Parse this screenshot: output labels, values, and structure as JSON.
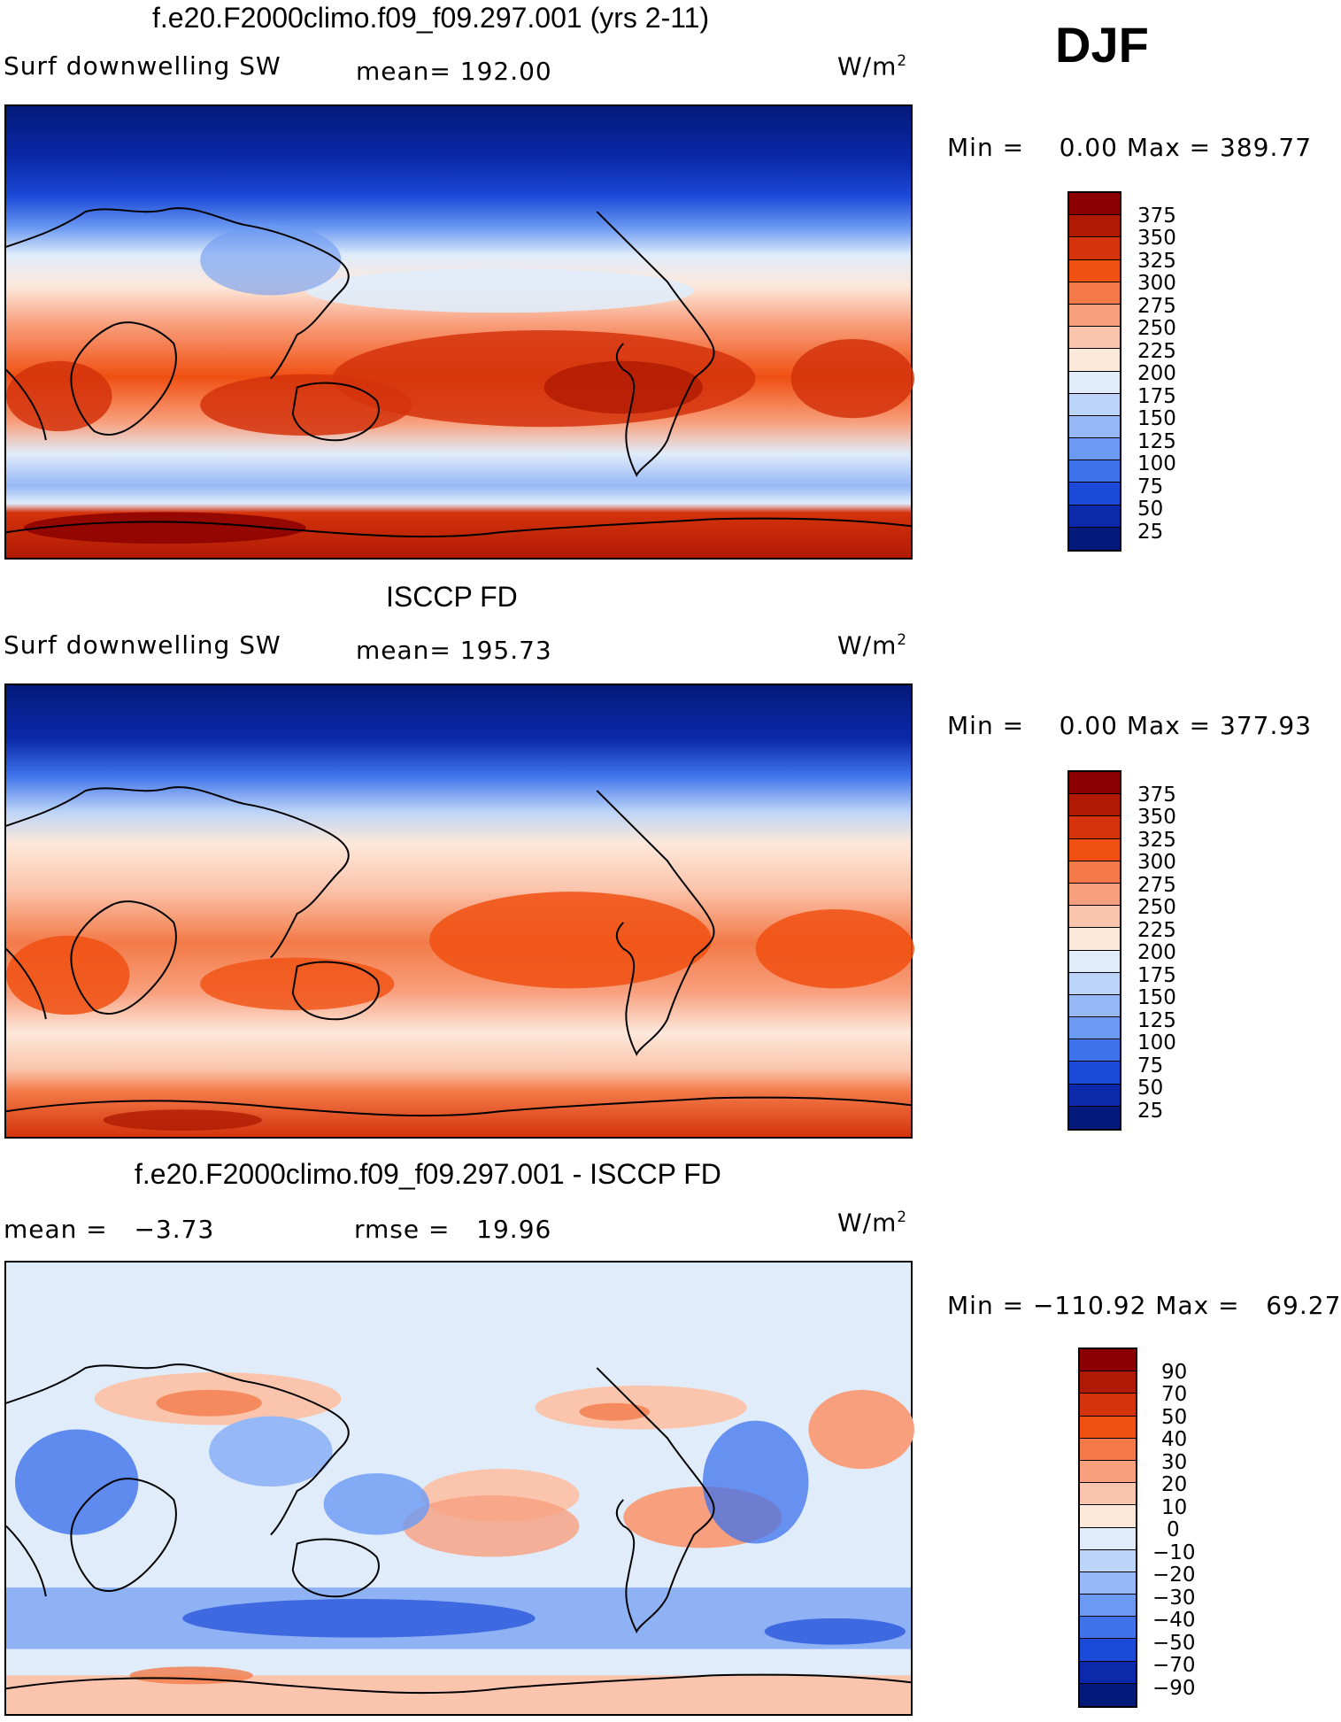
{
  "season": "DJF",
  "unit_base": "W/m",
  "unit_exp": "2",
  "panels": [
    {
      "title": "f.e20.F2000climo.f09_f09.297.001 (yrs 2-11)",
      "variable": "Surf downwelling SW",
      "stat": "mean= 192.00",
      "minmax": "Min =    0.00 Max = 389.77"
    },
    {
      "title": "ISCCP FD",
      "variable": "Surf downwelling SW",
      "stat": "mean= 195.73",
      "minmax": "Min =    0.00 Max = 377.93"
    },
    {
      "title": "f.e20.F2000climo.f09_f09.297.001 - ISCCP FD",
      "stat_mean": "mean =   −3.73",
      "stat_rmse": "rmse =   19.96",
      "minmax": "Min = −110.92 Max =   69.27"
    }
  ],
  "colorbars": {
    "abs": {
      "labels": [
        "375",
        "350",
        "325",
        "300",
        "275",
        "250",
        "225",
        "200",
        "175",
        "150",
        "125",
        "100",
        "75",
        "50",
        "25"
      ],
      "colors": [
        "#8b0000",
        "#b01a04",
        "#d4330c",
        "#f05012",
        "#f37a48",
        "#f8a07e",
        "#fbc5ad",
        "#fde8da",
        "#e0ecfa",
        "#bcd4f8",
        "#96b8f6",
        "#6c9af2",
        "#3f73ec",
        "#1c4ad8",
        "#0a2aab",
        "#041a7a"
      ]
    },
    "diff": {
      "labels": [
        "90",
        "70",
        "50",
        "40",
        "30",
        "20",
        "10",
        "0",
        "−10",
        "−20",
        "−30",
        "−40",
        "−50",
        "−70",
        "−90"
      ],
      "colors": [
        "#8b0000",
        "#b01a04",
        "#d4330c",
        "#f05012",
        "#f37a48",
        "#f8a07e",
        "#fbc5ad",
        "#fde8da",
        "#e0ecfa",
        "#bcd4f8",
        "#96b8f6",
        "#6c9af2",
        "#3f73ec",
        "#1c4ad8",
        "#0a2aab",
        "#041a7a"
      ]
    }
  }
}
